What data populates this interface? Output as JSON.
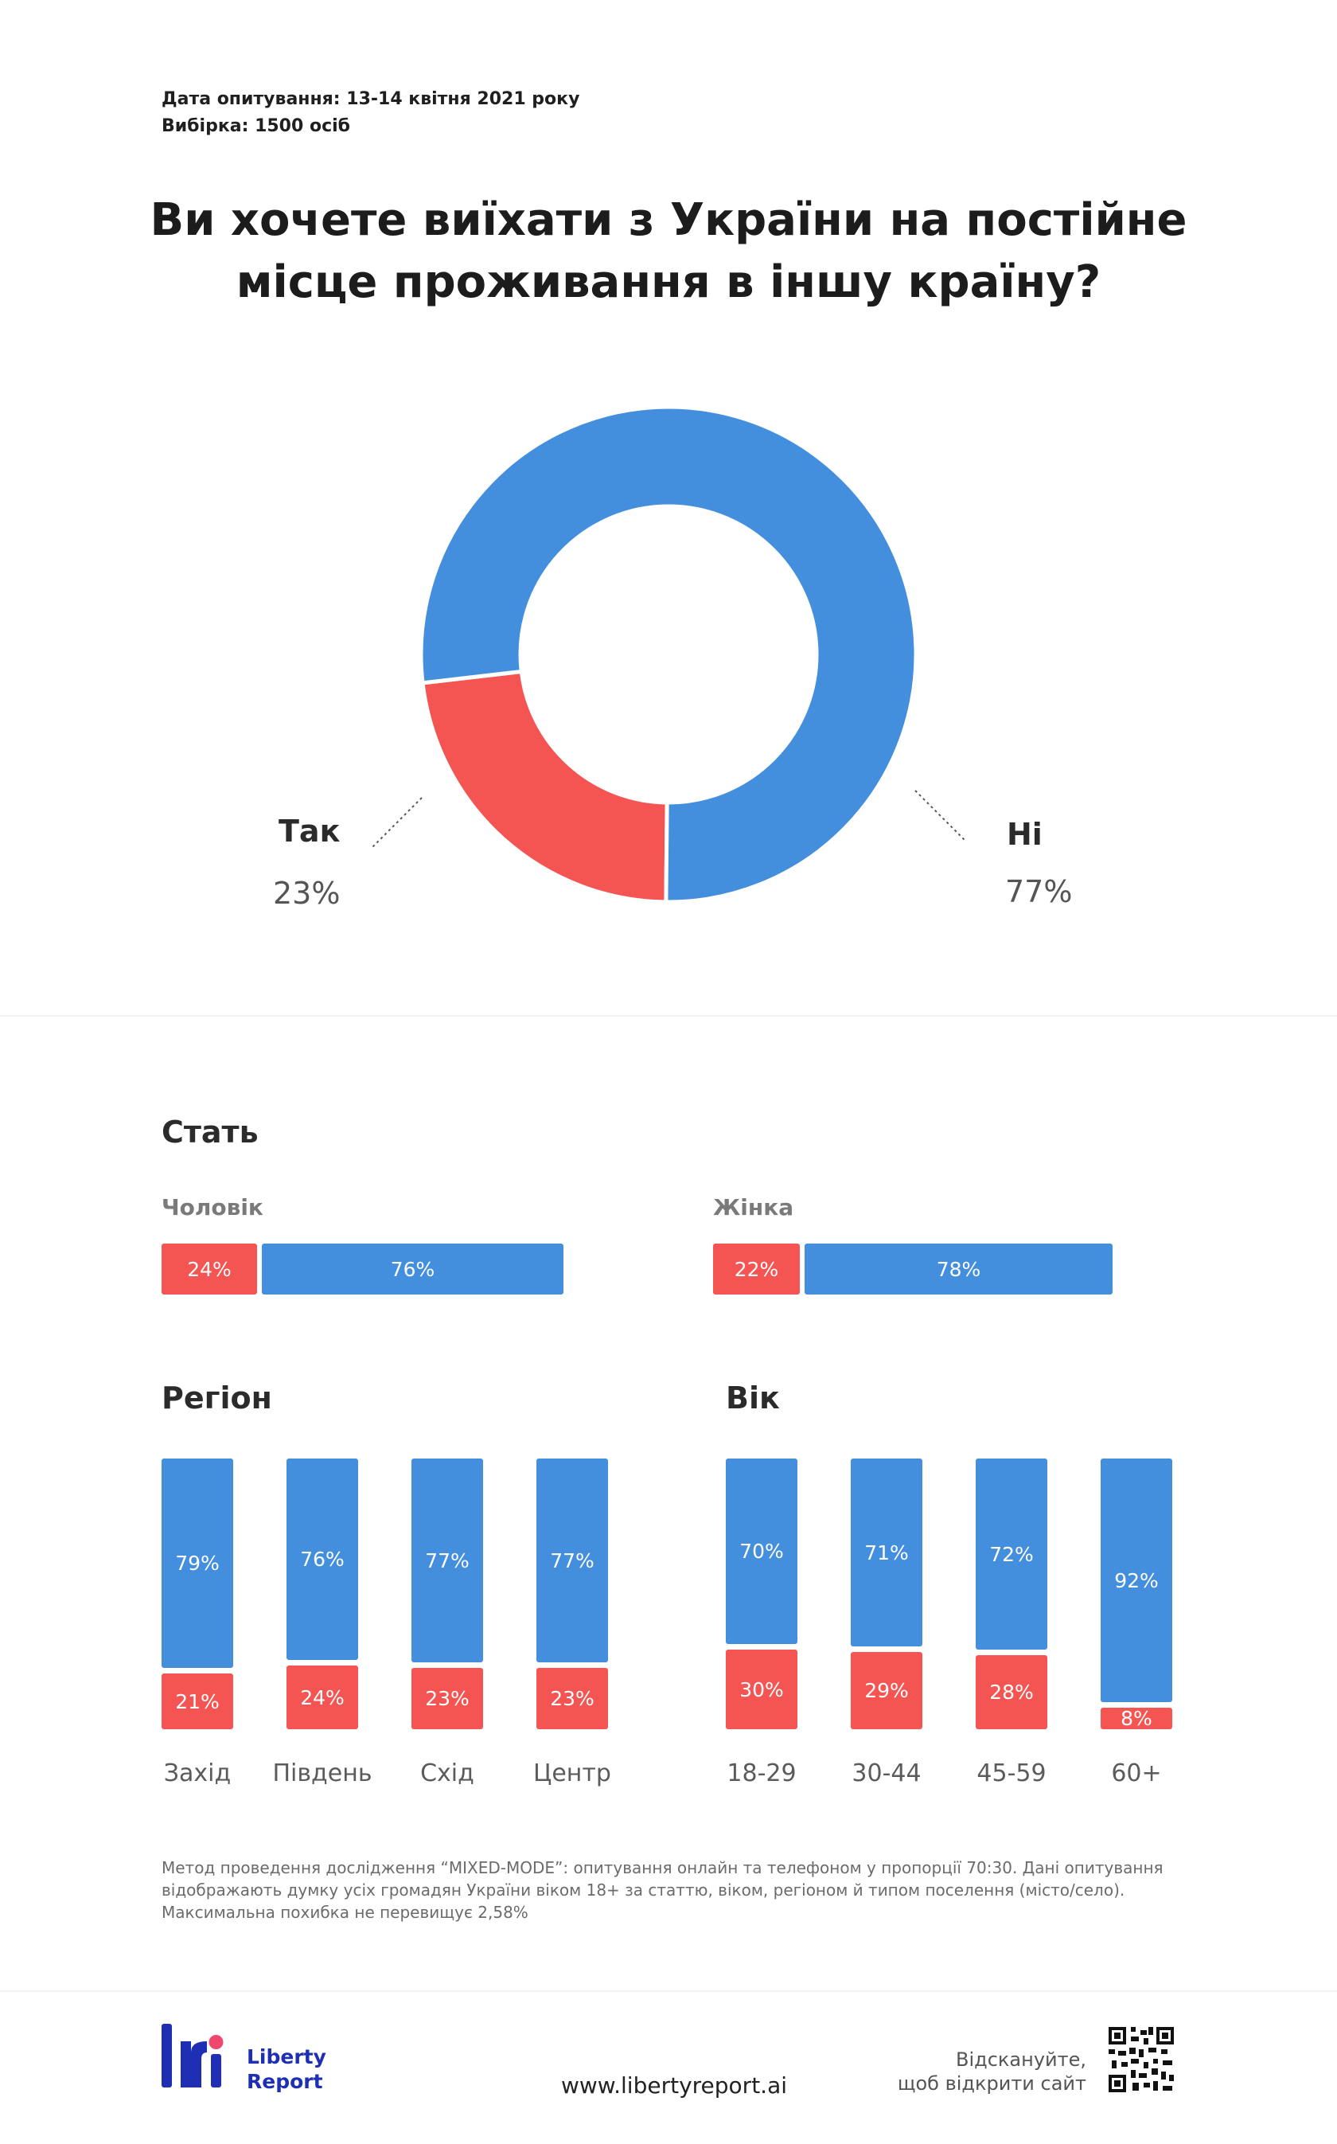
{
  "meta": {
    "date": "Дата опитування: 13-14 квітня 2021 року",
    "sample": "Вибірка: 1500 осіб"
  },
  "title_line1": "Ви хочете виїхати з України на постійне",
  "title_line2": "місце проживання в іншу країну?",
  "colors": {
    "yes": "#f45552",
    "no": "#438fde"
  },
  "chart_data": [
    {
      "type": "pie",
      "title": "Ви хочете виїхати з України на постійне місце проживання в іншу країну?",
      "categories": [
        "Так",
        "Ні"
      ],
      "values": [
        23,
        77
      ],
      "labels": [
        "23%",
        "77%"
      ]
    },
    {
      "type": "bar",
      "title": "Стать",
      "categories": [
        "Чоловік",
        "Жінка"
      ],
      "series": [
        {
          "values": [
            24,
            22
          ],
          "labels": [
            "24%",
            "22%"
          ]
        },
        {
          "values": [
            76,
            78
          ],
          "labels": [
            "76%",
            "78%"
          ]
        }
      ]
    },
    {
      "type": "bar",
      "title": "Регіон",
      "categories": [
        "Захід",
        "Південь",
        "Схід",
        "Центр"
      ],
      "series": [
        {
          "values": [
            79,
            76,
            77,
            77
          ],
          "labels": [
            "79%",
            "76%",
            "77%",
            "77%"
          ]
        },
        {
          "values": [
            21,
            24,
            23,
            23
          ],
          "labels": [
            "21%",
            "24%",
            "23%",
            "23%"
          ]
        }
      ]
    },
    {
      "type": "bar",
      "title": "Вік",
      "categories": [
        "18-29",
        "30-44",
        "45-59",
        "60+"
      ],
      "series": [
        {
          "values": [
            70,
            71,
            72,
            92
          ],
          "labels": [
            "70%",
            "71%",
            "72%",
            "92%"
          ]
        },
        {
          "values": [
            30,
            29,
            28,
            8
          ],
          "labels": [
            "30%",
            "29%",
            "28%",
            "8%"
          ]
        }
      ]
    }
  ],
  "methodology": [
    "Метод проведення дослідження “MIXED-MODE”: опитування онлайн та телефоном у пропорції 70:30. Дані опитування",
    "відображають думку усіх громадян України віком 18+ за статтю, віком, регіоном й типом поселення (місто/село).",
    "Максимальна похибка не перевищує 2,58%"
  ],
  "footer": {
    "brand_line1": "Liberty",
    "brand_line2": "Report",
    "brand_color": "#1f2fb3",
    "brand_accent": "#f0476e",
    "url": "www.libertyreport.ai",
    "scan_line1": "Відскануйте,",
    "scan_line2": "щоб відкрити сайт"
  }
}
